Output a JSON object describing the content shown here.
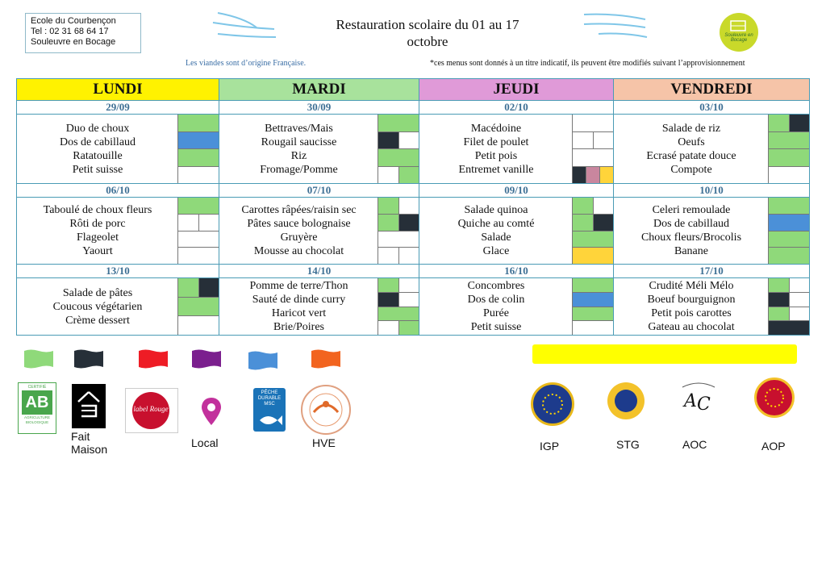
{
  "header": {
    "school_name": "Ecole du Courbençon",
    "school_phone": "Tel : 02 31 68 64 17",
    "school_town": "Souleuvre en Bocage",
    "title_line1": "Restauration scolaire du 01 au 17",
    "title_line2": "octobre",
    "logo_text": "Souleuvre en Bocage",
    "meat_origin_note": "Les viandes sont d’origine Française.",
    "menu_disclaimer": "*ces menus sont donnés à un titre indicatif, ils peuvent être modifiés suivant l’approvisionnement"
  },
  "colors": {
    "green": "#8fd97a",
    "black": "#262f38",
    "blue": "#4b90d8",
    "yellow": "#ffd43a",
    "pink": "#c9869e",
    "red": "#ee1c25",
    "purple": "#7b1f8e",
    "orange": "#f2641f"
  },
  "days": [
    {
      "name": "LUNDI",
      "color": "#fff200"
    },
    {
      "name": "MARDI",
      "color": "#a8e29c"
    },
    {
      "name": "JEUDI",
      "color": "#e09ad8"
    },
    {
      "name": "VENDREDI",
      "color": "#f6c4a8"
    }
  ],
  "weeks": [
    [
      {
        "date": "29/09",
        "dishes": [
          "Duo de choux",
          "Dos de cabillaud",
          "Ratatouille",
          "Petit suisse"
        ],
        "tags": [
          [
            "green"
          ],
          [
            "blue"
          ],
          [
            "green"
          ],
          [
            "white"
          ]
        ]
      },
      {
        "date": "30/09",
        "dishes": [
          "Bettraves/Mais",
          "Rougail saucisse",
          "Riz",
          "Fromage/Pomme"
        ],
        "tags": [
          [
            "green"
          ],
          [
            "black",
            "white"
          ],
          [
            "green"
          ],
          [
            "white",
            "green"
          ]
        ]
      },
      {
        "date": "02/10",
        "dishes": [
          "Macédoine",
          "Filet de poulet",
          "Petit pois",
          "Entremet vanille"
        ],
        "tags": [
          [
            "white"
          ],
          [
            "white",
            "white"
          ],
          [
            "white"
          ],
          [
            "black",
            "pink",
            "yellow"
          ]
        ]
      },
      {
        "date": "03/10",
        "dishes": [
          "Salade de riz",
          "Oeufs",
          "Ecrasé patate douce",
          "Compote"
        ],
        "tags": [
          [
            "green",
            "black"
          ],
          [
            "green"
          ],
          [
            "green"
          ],
          [
            "white"
          ]
        ]
      }
    ],
    [
      {
        "date": "06/10",
        "dishes": [
          "Taboulé de choux fleurs",
          "Rôti de porc",
          "Flageolet",
          "Yaourt"
        ],
        "tags": [
          [
            "green"
          ],
          [
            "white",
            "white"
          ],
          [
            "white"
          ],
          [
            "white"
          ]
        ]
      },
      {
        "date": "07/10",
        "dishes": [
          "Carottes râpées/raisin sec",
          "Pâtes sauce bolognaise",
          "Gruyère",
          "Mousse au chocolat"
        ],
        "tags": [
          [
            "green",
            "white"
          ],
          [
            "green",
            "black"
          ],
          [
            "white"
          ],
          [
            "white",
            "white"
          ]
        ]
      },
      {
        "date": "09/10",
        "dishes": [
          "Salade quinoa",
          "Quiche au comté",
          "Salade",
          "Glace"
        ],
        "tags": [
          [
            "green",
            "white"
          ],
          [
            "green",
            "black"
          ],
          [
            "green"
          ],
          [
            "yellow"
          ]
        ]
      },
      {
        "date": "10/10",
        "dishes": [
          "Celeri remoulade",
          "Dos de cabillaud",
          "Choux fleurs/Brocolis",
          "Banane"
        ],
        "tags": [
          [
            "green"
          ],
          [
            "blue"
          ],
          [
            "green"
          ],
          [
            "green"
          ]
        ]
      }
    ],
    [
      {
        "date": "13/10",
        "dishes": [
          "Salade de pâtes",
          "Coucous végétarien",
          "Crème dessert"
        ],
        "tags": [
          [
            "green",
            "black"
          ],
          [
            "green"
          ],
          [
            "white"
          ]
        ]
      },
      {
        "date": "14/10",
        "dishes": [
          "Pomme de terre/Thon",
          "Sauté de dinde curry",
          "Haricot vert",
          "Brie/Poires"
        ],
        "tags": [
          [
            "green",
            "white"
          ],
          [
            "black",
            "white"
          ],
          [
            "green"
          ],
          [
            "white",
            "green"
          ]
        ]
      },
      {
        "date": "16/10",
        "dishes": [
          "Concombres",
          "Dos de colin",
          "Purée",
          "Petit suisse"
        ],
        "tags": [
          [
            "green"
          ],
          [
            "blue"
          ],
          [
            "green"
          ],
          [
            "white"
          ]
        ]
      },
      {
        "date": "17/10",
        "dishes": [
          "Crudité Méli Mélo",
          "Boeuf bourguignon",
          "Petit pois carottes",
          "Gateau au chocolat"
        ],
        "tags": [
          [
            "green",
            "white"
          ],
          [
            "black",
            "white"
          ],
          [
            "green",
            "white"
          ],
          [
            "black"
          ]
        ]
      }
    ]
  ],
  "legend": {
    "ab_logo_text": "AB",
    "ab_top_text": "CERTIFIÉ",
    "ab_bottom_text": "AGRICULTURE BIOLOGIQUE",
    "label_rouge_text": "label Rouge",
    "msc_text": "PÊCHE DURABLE MSC",
    "fait_maison_line1": "Fait",
    "fait_maison_line2": "Maison",
    "local": "Local",
    "hve": "HVE",
    "igp": "IGP",
    "stg": "STG",
    "aoc": "AOC",
    "aop": "AOP"
  }
}
